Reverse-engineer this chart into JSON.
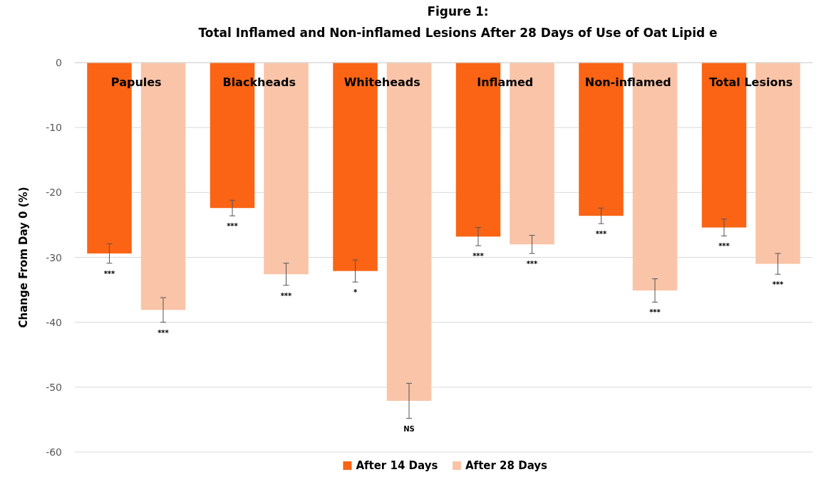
{
  "chart_data": {
    "type": "bar",
    "title": "Figure 1:",
    "subtitle": "Total Inflamed and Non-inflamed Lesions After 28 Days of Use of Oat Lipid e",
    "ylabel": "Change From Day 0 (%)",
    "categories": [
      "Papules",
      "Blackheads",
      "Whiteheads",
      "Inflamed",
      "Non-inflamed",
      "Total Lesions"
    ],
    "series": [
      {
        "name": "After 14 Days",
        "color": "#fa6414",
        "values": [
          -29.4,
          -22.4,
          -32.1,
          -26.8,
          -23.6,
          -25.4
        ],
        "errors": [
          1.5,
          1.2,
          1.7,
          1.4,
          1.2,
          1.3
        ]
      },
      {
        "name": "After 28 Days",
        "color": "#f9c4a8",
        "values": [
          -38.1,
          -32.6,
          -52.1,
          -28.0,
          -35.1,
          -31.0
        ],
        "errors": [
          1.9,
          1.7,
          2.7,
          1.4,
          1.8,
          1.6
        ]
      }
    ],
    "ylim": [
      -60,
      0
    ],
    "yticks": [
      -60,
      -50,
      -40,
      -30,
      -20,
      -10,
      0
    ],
    "grid": "y",
    "legend": "bottom",
    "annotations": [
      "***",
      "***",
      "***",
      "***",
      "*",
      "NS",
      "***",
      "***",
      "***",
      "***",
      "***",
      "***"
    ]
  }
}
